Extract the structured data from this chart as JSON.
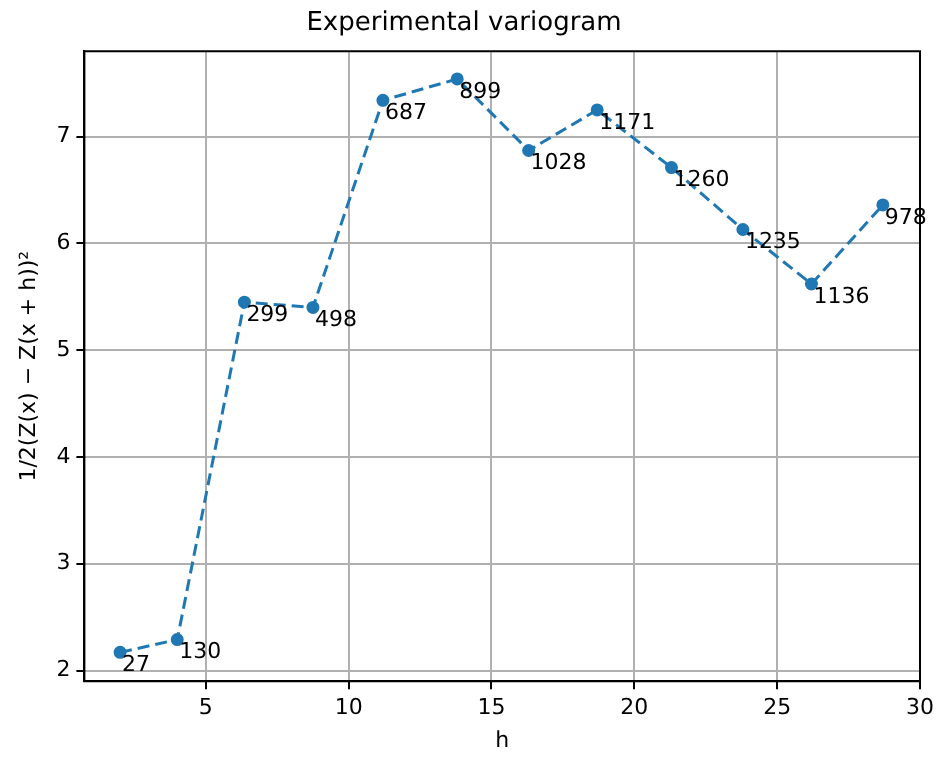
{
  "chart_data": {
    "type": "line",
    "title": "Experimental variogram",
    "xlabel": "h",
    "ylabel": "1/2(Z(x) − Z(x + h))²",
    "x": [
      2.0,
      4.0,
      6.35,
      8.75,
      11.2,
      13.8,
      16.3,
      18.7,
      21.3,
      23.8,
      26.2,
      28.7
    ],
    "series": [
      {
        "color": "#1f77b4",
        "values": [
          2.17,
          2.29,
          5.45,
          5.4,
          7.34,
          7.54,
          6.87,
          7.25,
          6.71,
          6.13,
          5.62,
          6.36
        ]
      }
    ],
    "xlim": [
      0.75,
      30
    ],
    "xticks": [
      5,
      10,
      15,
      20,
      25,
      30
    ],
    "ylim": [
      1.9,
      7.8
    ],
    "yticks": [
      2,
      3,
      4,
      5,
      6,
      7
    ],
    "grid": true,
    "legend": false,
    "marker": "circle",
    "line_style": "dashed",
    "annotations": [
      {
        "text": "27",
        "x": 2.0,
        "y": 2.17
      },
      {
        "text": "130",
        "x": 4.0,
        "y": 2.29
      },
      {
        "text": "299",
        "x": 6.35,
        "y": 5.45
      },
      {
        "text": "498",
        "x": 8.75,
        "y": 5.4
      },
      {
        "text": "687",
        "x": 11.2,
        "y": 7.34
      },
      {
        "text": "899",
        "x": 13.8,
        "y": 7.54
      },
      {
        "text": "1028",
        "x": 16.3,
        "y": 6.87
      },
      {
        "text": "1171",
        "x": 18.7,
        "y": 7.25
      },
      {
        "text": "1260",
        "x": 21.3,
        "y": 6.71
      },
      {
        "text": "1235",
        "x": 23.8,
        "y": 6.13
      },
      {
        "text": "1136",
        "x": 26.2,
        "y": 5.62
      },
      {
        "text": "978",
        "x": 28.7,
        "y": 6.36
      }
    ]
  }
}
